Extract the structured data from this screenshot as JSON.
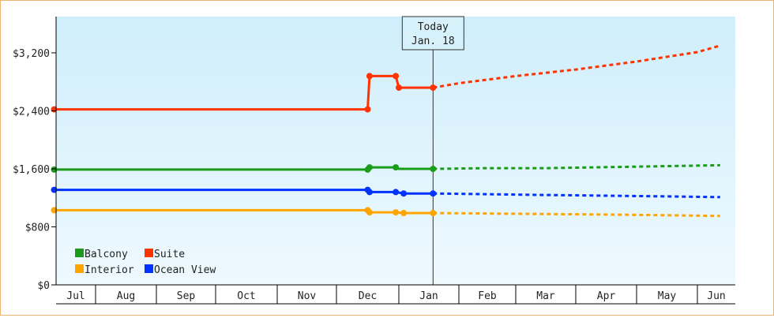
{
  "chart_data": {
    "type": "line",
    "title": "",
    "xlabel": "",
    "ylabel": "",
    "x_unit": "month index (0 = Jul 1, 1 = Aug 1, ... 11 = Jun 1)",
    "month_ticks": [
      "Jul",
      "Aug",
      "Sep",
      "Oct",
      "Nov",
      "Dec",
      "Jan",
      "Feb",
      "Mar",
      "Apr",
      "May",
      "Jun"
    ],
    "y_ticks": [
      "$0",
      "$800",
      "$1,600",
      "$2,400",
      "$3,200"
    ],
    "y_tick_values": [
      0,
      800,
      1600,
      2400,
      3200
    ],
    "ylim": [
      0,
      3700
    ],
    "grid": false,
    "legend_position": "bottom-left",
    "today": {
      "label_line1": "Today",
      "label_line2": "Jan. 18",
      "x": 6.57
    },
    "colors": {
      "Balcony": "#1a9c1a",
      "Suite": "#ff3300",
      "Interior": "#ffa500",
      "Ocean View": "#0033ff",
      "plot_top": "#cfeefb",
      "plot_bottom": "#eef9fe",
      "frame_border": "#f0b46e"
    },
    "legend_order": [
      "Balcony",
      "Suite",
      "Interior",
      "Ocean View"
    ],
    "series": [
      {
        "name": "Suite",
        "history": [
          [
            -0.05,
            2420
          ],
          [
            5.5,
            2420
          ],
          [
            5.53,
            2880
          ],
          [
            5.95,
            2880
          ],
          [
            6.0,
            2720
          ],
          [
            6.57,
            2720
          ]
        ],
        "markers": [
          [
            -0.05,
            2420
          ],
          [
            5.5,
            2420
          ],
          [
            5.53,
            2880
          ],
          [
            5.95,
            2880
          ],
          [
            6.0,
            2720
          ],
          [
            6.57,
            2720
          ]
        ],
        "forecast": [
          [
            6.57,
            2720
          ],
          [
            7.0,
            2780
          ],
          [
            8.0,
            2880
          ],
          [
            9.0,
            2970
          ],
          [
            10.0,
            3080
          ],
          [
            11.0,
            3210
          ],
          [
            11.6,
            3300
          ]
        ]
      },
      {
        "name": "Balcony",
        "history": [
          [
            -0.05,
            1590
          ],
          [
            5.5,
            1590
          ],
          [
            5.53,
            1620
          ],
          [
            5.95,
            1620
          ],
          [
            6.0,
            1600
          ],
          [
            6.57,
            1600
          ]
        ],
        "markers": [
          [
            -0.05,
            1590
          ],
          [
            5.5,
            1590
          ],
          [
            5.53,
            1620
          ],
          [
            5.95,
            1620
          ],
          [
            6.57,
            1600
          ]
        ],
        "forecast": [
          [
            6.57,
            1600
          ],
          [
            7.5,
            1610
          ],
          [
            8.5,
            1610
          ],
          [
            10.0,
            1630
          ],
          [
            11.6,
            1650
          ]
        ]
      },
      {
        "name": "Ocean View",
        "history": [
          [
            -0.05,
            1310
          ],
          [
            5.5,
            1310
          ],
          [
            5.53,
            1280
          ],
          [
            5.95,
            1280
          ],
          [
            6.08,
            1260
          ],
          [
            6.57,
            1260
          ]
        ],
        "markers": [
          [
            -0.05,
            1310
          ],
          [
            5.5,
            1310
          ],
          [
            5.53,
            1280
          ],
          [
            5.95,
            1280
          ],
          [
            6.08,
            1260
          ],
          [
            6.57,
            1260
          ]
        ],
        "forecast": [
          [
            6.57,
            1260
          ],
          [
            7.5,
            1250
          ],
          [
            8.5,
            1240
          ],
          [
            9.5,
            1230
          ],
          [
            10.5,
            1220
          ],
          [
            11.6,
            1210
          ]
        ]
      },
      {
        "name": "Interior",
        "history": [
          [
            -0.05,
            1030
          ],
          [
            5.5,
            1030
          ],
          [
            5.53,
            1000
          ],
          [
            5.95,
            1000
          ],
          [
            6.08,
            990
          ],
          [
            6.57,
            990
          ]
        ],
        "markers": [
          [
            -0.05,
            1030
          ],
          [
            5.5,
            1030
          ],
          [
            5.53,
            1000
          ],
          [
            5.95,
            1000
          ],
          [
            6.08,
            990
          ],
          [
            6.57,
            990
          ]
        ],
        "forecast": [
          [
            6.57,
            990
          ],
          [
            8.0,
            980
          ],
          [
            9.5,
            970
          ],
          [
            10.5,
            960
          ],
          [
            11.6,
            950
          ]
        ]
      }
    ]
  }
}
